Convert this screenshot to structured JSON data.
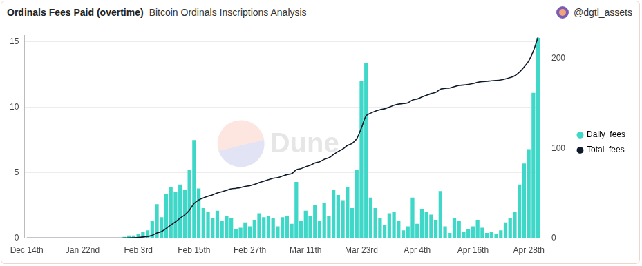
{
  "chart_data": {
    "type": "bar",
    "title": "Ordinals Fees Paid (overtime)",
    "subtitle": "Bitcoin Ordinals Inscriptions Analysis",
    "source": "@dgtl_assets",
    "watermark": "Dune",
    "categories": [
      "Dec 14th",
      null,
      null,
      null,
      null,
      null,
      null,
      null,
      null,
      null,
      null,
      null,
      "Jan 22nd",
      null,
      null,
      null,
      null,
      null,
      null,
      null,
      null,
      null,
      null,
      null,
      "Feb 3rd",
      null,
      null,
      null,
      null,
      null,
      null,
      null,
      null,
      null,
      null,
      null,
      "Feb 15th",
      null,
      null,
      null,
      null,
      null,
      null,
      null,
      null,
      null,
      null,
      null,
      "Feb 27th",
      null,
      null,
      null,
      null,
      null,
      null,
      null,
      null,
      null,
      null,
      null,
      "Mar 11th",
      null,
      null,
      null,
      null,
      null,
      null,
      null,
      null,
      null,
      null,
      null,
      "Mar 23rd",
      null,
      null,
      null,
      null,
      null,
      null,
      null,
      null,
      null,
      null,
      null,
      "Apr 4th",
      null,
      null,
      null,
      null,
      null,
      null,
      null,
      null,
      null,
      null,
      null,
      "Apr 16th",
      null,
      null,
      null,
      null,
      null,
      null,
      null,
      null,
      null,
      null,
      null,
      "Apr 28th",
      null,
      null
    ],
    "series": [
      {
        "name": "Daily_fees",
        "type": "bar",
        "color": "#3fd8c8",
        "values": [
          0,
          0,
          0,
          0,
          0,
          0,
          0,
          0,
          0,
          0,
          0,
          0,
          0,
          0,
          0,
          0,
          0,
          0,
          0,
          0,
          0,
          0.1,
          0.2,
          0.2,
          0.3,
          0.5,
          0.6,
          1.3,
          2.6,
          1.6,
          3.4,
          3.9,
          3.5,
          4.1,
          3.7,
          5.2,
          7.5,
          3.8,
          2.3,
          2.0,
          1.5,
          2.1,
          1.3,
          1.7,
          1.5,
          0.7,
          0.8,
          1.2,
          0.9,
          1.4,
          1.9,
          1.6,
          1.7,
          1.5,
          0.9,
          1.6,
          1.7,
          1.1,
          4.3,
          1.3,
          2.1,
          1.7,
          2.5,
          1.3,
          2.7,
          1.7,
          3.7,
          3.3,
          2.9,
          3.9,
          2.3,
          5.2,
          12.0,
          13.4,
          3.1,
          2.3,
          1.5,
          1.0,
          1.9,
          2.0,
          1.3,
          0.6,
          0.9,
          3.1,
          1.1,
          2.2,
          2.0,
          1.8,
          1.4,
          3.6,
          0.9,
          0.4,
          1.5,
          1.3,
          0.5,
          0.7,
          0.9,
          1.4,
          0.8,
          0.4,
          0.5,
          0.3,
          0.6,
          1.2,
          1.5,
          2.0,
          4.1,
          5.7,
          6.8,
          11.1,
          15.3
        ]
      },
      {
        "name": "Total_fees",
        "type": "line",
        "axis": "y2",
        "color": "#0e1a2a",
        "values": [
          0,
          0,
          0,
          0,
          0,
          0,
          0,
          0,
          0,
          0,
          0,
          0,
          0,
          0,
          0,
          0,
          0,
          0,
          0,
          0,
          0,
          0.1,
          0.3,
          0.5,
          0.8,
          1.3,
          1.9,
          3.2,
          5.8,
          7.4,
          10.8,
          14.7,
          18.2,
          22.3,
          26.0,
          31.2,
          38.7,
          42.5,
          44.8,
          46.8,
          48.3,
          50.4,
          51.7,
          53.4,
          54.9,
          55.6,
          56.4,
          57.6,
          58.5,
          59.9,
          61.8,
          63.4,
          65.1,
          66.6,
          67.5,
          69.1,
          70.8,
          71.9,
          76.2,
          77.5,
          79.6,
          81.3,
          83.8,
          85.1,
          87.8,
          89.5,
          93.2,
          96.5,
          99.4,
          103.3,
          105.6,
          110.8,
          122.8,
          136.2,
          139.3,
          141.6,
          143.1,
          144.1,
          146.0,
          148.0,
          149.3,
          149.9,
          150.8,
          153.9,
          155.0,
          157.2,
          159.2,
          161.0,
          162.4,
          166.0,
          166.9,
          167.3,
          168.8,
          170.1,
          170.6,
          171.3,
          172.2,
          173.6,
          174.4,
          174.8,
          175.3,
          175.6,
          176.2,
          177.4,
          178.9,
          180.9,
          185.0,
          190.7,
          197.5,
          208.6,
          223.9
        ]
      }
    ],
    "ylim": [
      0,
      15.5
    ],
    "yticks": [
      0,
      5,
      10,
      15
    ],
    "y2lim": [
      0,
      226
    ],
    "y2ticks": [
      0,
      100,
      200
    ],
    "grid": true,
    "legend": "right"
  }
}
